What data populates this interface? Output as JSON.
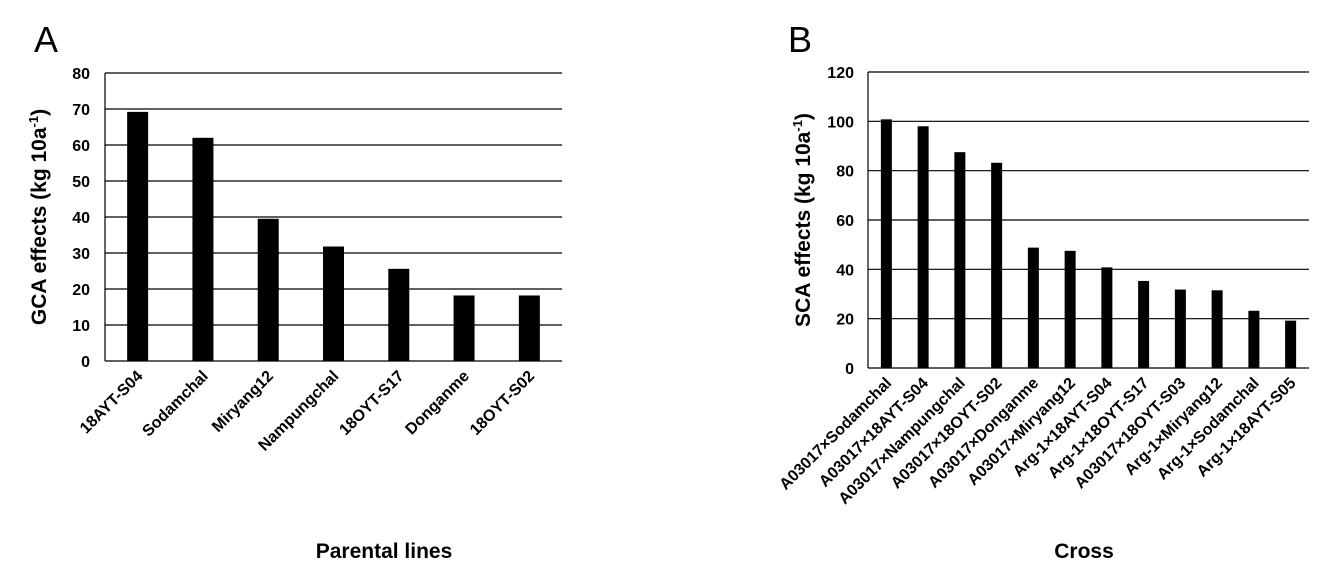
{
  "chart_data": [
    {
      "type": "bar",
      "panel_label": "A",
      "categories": [
        "18AYT-S04",
        "Sodamchal",
        "Miryang12",
        "Nampungchal",
        "18OYT-S17",
        "Donganme",
        "18OYT-S02"
      ],
      "values": [
        69.2,
        62.0,
        39.5,
        31.8,
        25.6,
        18.2,
        18.2
      ],
      "xlabel": "Parental lines",
      "ylabel": "GCA effects (kg 10a-1)",
      "ylabel_main": "GCA effects (kg 10a",
      "ylabel_sup": "-1",
      "ylabel_close": ")",
      "ylim": [
        0,
        80
      ],
      "yticks": [
        "0",
        "10",
        "20",
        "30",
        "40",
        "50",
        "60",
        "70",
        "80"
      ],
      "grid": true,
      "bar_color": "#000000"
    },
    {
      "type": "bar",
      "panel_label": "B",
      "categories": [
        "A03017×Sodamchal",
        "A03017×18AYT-S04",
        "A03017×Nampungchal",
        "A03017×18OYT-S02",
        "A03017×Donganme",
        "A03017×Miryang12",
        "Arg-1×18AYT-S04",
        "Arg-1×18OYT-S17",
        "A03017×18OYT-S03",
        "Arg-1×Miryang12",
        "Arg-1×Sodamchal",
        "Arg-1×18AYT-S05"
      ],
      "values": [
        100.8,
        98.0,
        87.5,
        83.2,
        48.8,
        47.5,
        40.8,
        35.3,
        31.8,
        31.5,
        23.2,
        19.2
      ],
      "xlabel": "Cross",
      "ylabel": "SCA effects (kg 10a-1)",
      "ylabel_main": "SCA effects (kg 10a",
      "ylabel_sup": "-1",
      "ylabel_close": ")",
      "ylim": [
        0,
        120
      ],
      "yticks": [
        "0",
        "20",
        "40",
        "60",
        "80",
        "100",
        "120"
      ],
      "grid": true,
      "bar_color": "#000000"
    }
  ]
}
